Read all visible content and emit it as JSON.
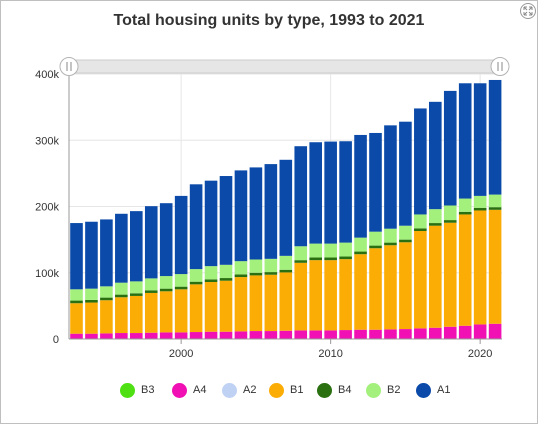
{
  "header": {
    "title": "Total housing units by type, 1993 to 2021"
  },
  "controls": {
    "expand_icon": "expand-arrows-icon",
    "range_handle_icon": "double-bar-grip-icon"
  },
  "chart_data": {
    "type": "bar",
    "stacked": true,
    "title": "Total housing units by type, 1993 to 2021",
    "xlabel": "",
    "ylabel": "",
    "x_tick_labels": [
      "2000",
      "2010",
      "2020"
    ],
    "y_tick_labels": [
      "0",
      "100k",
      "200k",
      "300k",
      "400k"
    ],
    "ylim": [
      0,
      400000
    ],
    "grid": true,
    "legend_position": "bottom",
    "categories": [
      1993,
      1994,
      1995,
      1996,
      1997,
      1998,
      1999,
      2000,
      2001,
      2002,
      2003,
      2004,
      2005,
      2006,
      2007,
      2008,
      2009,
      2010,
      2011,
      2012,
      2013,
      2014,
      2015,
      2016,
      2017,
      2018,
      2019,
      2020,
      2021
    ],
    "series": [
      {
        "name": "B3",
        "color": "#4ee012",
        "values": [
          0,
          0,
          0,
          0,
          0,
          0,
          0,
          0,
          0,
          0,
          0,
          0,
          0,
          0,
          0,
          0,
          0,
          0,
          0,
          0,
          0,
          0,
          0,
          0,
          0,
          0,
          0,
          0,
          0
        ]
      },
      {
        "name": "A4",
        "color": "#f010b4",
        "values": [
          8000,
          8000,
          8500,
          9000,
          9000,
          9500,
          10000,
          10000,
          10500,
          11000,
          11000,
          11500,
          12000,
          12000,
          12500,
          13000,
          13000,
          13000,
          13500,
          14000,
          14000,
          14500,
          15000,
          16000,
          17000,
          18500,
          20000,
          22000,
          23000
        ]
      },
      {
        "name": "A2",
        "color": "#c0d2f4",
        "values": [
          0,
          0,
          0,
          0,
          0,
          0,
          0,
          0,
          0,
          0,
          0,
          0,
          0,
          0,
          0,
          0,
          0,
          0,
          0,
          0,
          0,
          0,
          0,
          0,
          0,
          0,
          0,
          0,
          0
        ]
      },
      {
        "name": "B1",
        "color": "#fbad06",
        "values": [
          46000,
          47000,
          50000,
          54000,
          56000,
          60000,
          62000,
          65000,
          72000,
          75000,
          77000,
          82000,
          84000,
          85000,
          88000,
          102000,
          106000,
          106000,
          107000,
          114000,
          123000,
          127000,
          131000,
          147000,
          154000,
          157000,
          168000,
          172000,
          172000
        ]
      },
      {
        "name": "B4",
        "color": "#2a7010",
        "values": [
          4000,
          4000,
          4000,
          4000,
          4000,
          4000,
          4000,
          4000,
          4000,
          4000,
          4000,
          4000,
          4000,
          4000,
          4000,
          4000,
          4000,
          4000,
          4000,
          4000,
          4000,
          4000,
          4000,
          4000,
          4000,
          4000,
          4000,
          4000,
          4000
        ]
      },
      {
        "name": "B2",
        "color": "#a3f07c",
        "values": [
          17000,
          17000,
          17000,
          18000,
          18000,
          18000,
          19000,
          19000,
          19000,
          20000,
          20000,
          20000,
          20000,
          20000,
          21000,
          21000,
          21000,
          21000,
          21000,
          21000,
          21000,
          21000,
          21000,
          21000,
          21000,
          22000,
          20000,
          18000,
          19000
        ]
      },
      {
        "name": "A1",
        "color": "#0b4aa8",
        "values": [
          100000,
          101000,
          101000,
          104000,
          106000,
          109000,
          110000,
          118000,
          128000,
          129000,
          134000,
          137000,
          139000,
          143000,
          145000,
          151000,
          153000,
          154000,
          153000,
          155000,
          149000,
          156000,
          157000,
          160000,
          162000,
          173000,
          174000,
          170000,
          173000
        ]
      }
    ]
  }
}
